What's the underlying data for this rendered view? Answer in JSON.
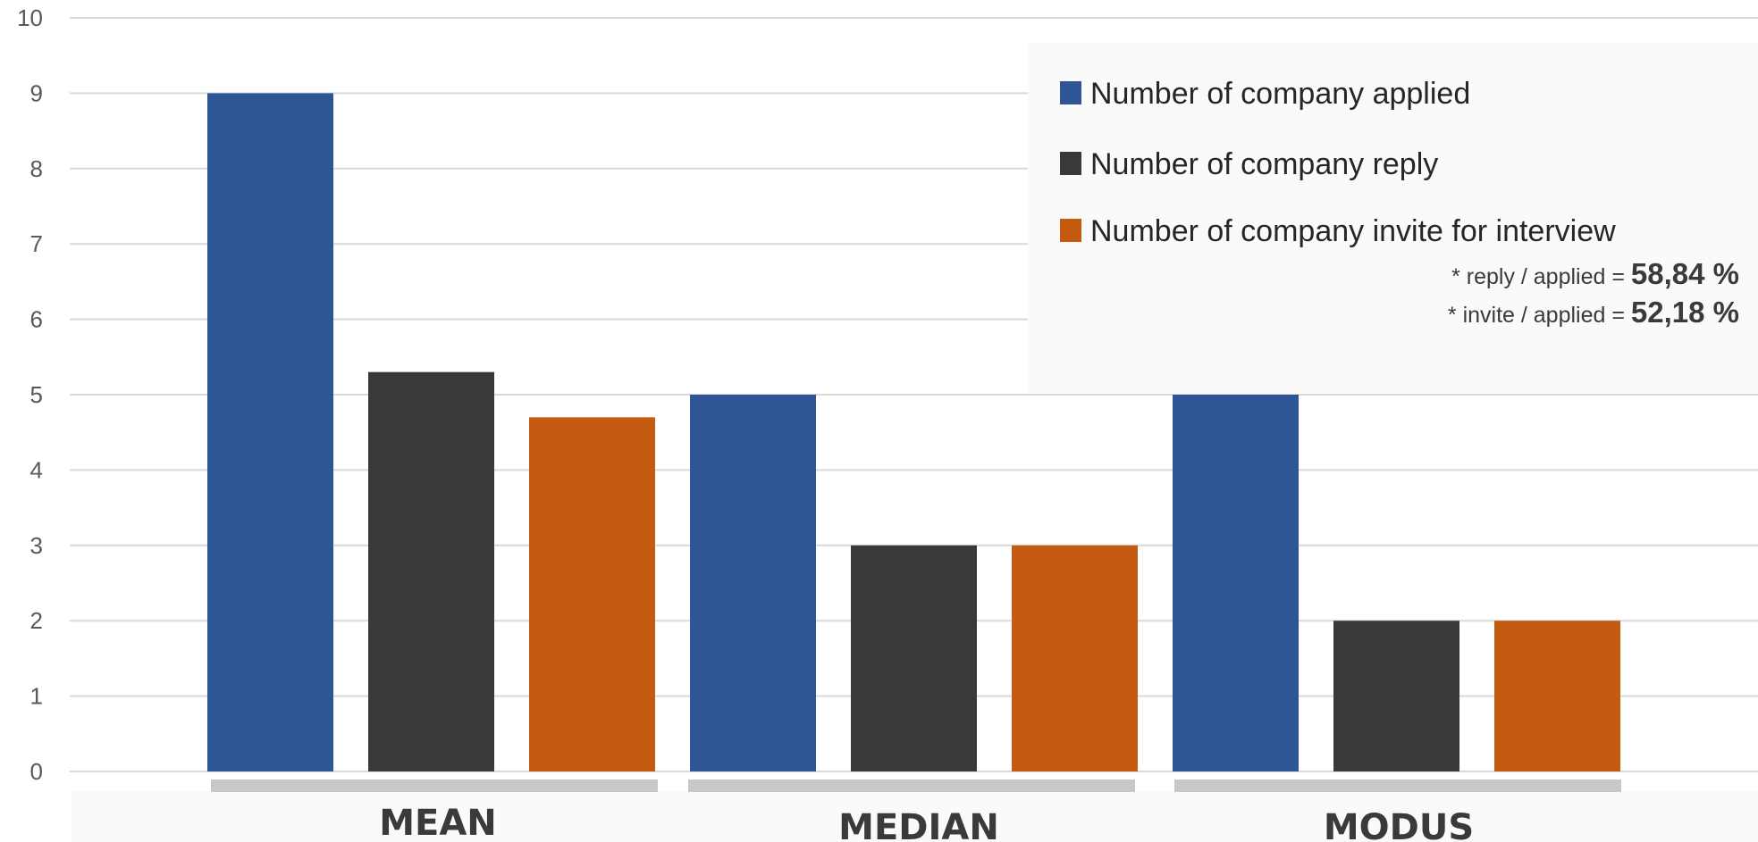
{
  "chart_data": {
    "type": "bar",
    "categories": [
      "MEAN",
      "MEDIAN",
      "MODUS"
    ],
    "series": [
      {
        "name": "Number of company applied",
        "values": [
          9,
          5,
          5
        ],
        "color": "#2e5596"
      },
      {
        "name": "Number of company reply",
        "values": [
          5.3,
          3,
          2
        ],
        "color": "#3a3938"
      },
      {
        "name": "Number of company invite for interview",
        "values": [
          4.7,
          3,
          2
        ],
        "color": "#c55a11"
      }
    ],
    "ylim": [
      0,
      10
    ],
    "yticks": [
      "0",
      "1",
      "2",
      "3",
      "4",
      "5",
      "6",
      "7",
      "8",
      "9",
      "10"
    ],
    "grid": true,
    "legend_position": "top-right",
    "annotations": [
      {
        "label": "* reply / applied = ",
        "value": "58,84 %"
      },
      {
        "label": "* invite / applied = ",
        "value": "52,18 %"
      }
    ],
    "category_bar_color": "#c8c8c8",
    "grid_color": "#d9d9d9"
  }
}
